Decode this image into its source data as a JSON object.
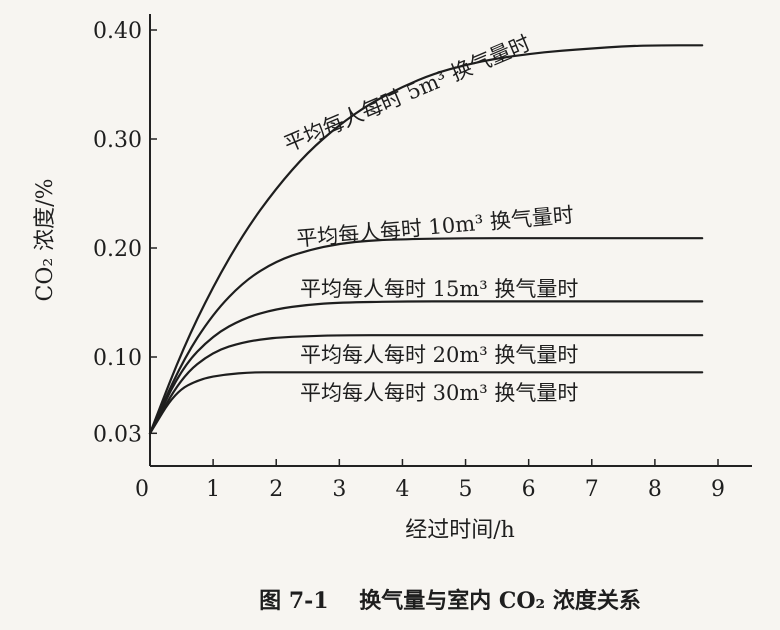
{
  "chart_data": {
    "type": "line",
    "xlabel": "经过时间/h",
    "ylabel": "CO₂ 浓度/%",
    "xlim": [
      0,
      9
    ],
    "ylim": [
      0,
      0.4
    ],
    "x_ticks": [
      "0",
      "1",
      "2",
      "3",
      "4",
      "5",
      "6",
      "7",
      "8",
      "9"
    ],
    "y_ticks": [
      {
        "value": 0.4,
        "label": "0.40"
      },
      {
        "value": 0.3,
        "label": "0.30"
      },
      {
        "value": 0.2,
        "label": "0.20"
      },
      {
        "value": 0.1,
        "label": "0.10"
      },
      {
        "value": 0.03,
        "label": "0.03"
      }
    ],
    "grid": false,
    "series": [
      {
        "name": "平均每人每时 5m³ 换气量时",
        "x": [
          0,
          0.5,
          1,
          1.5,
          2,
          2.5,
          3,
          3.5,
          4,
          4.5,
          5,
          5.5,
          6,
          6.5,
          7,
          7.5,
          8,
          8.75
        ],
        "y": [
          0.03,
          0.105,
          0.165,
          0.215,
          0.255,
          0.288,
          0.313,
          0.333,
          0.348,
          0.36,
          0.368,
          0.374,
          0.378,
          0.381,
          0.383,
          0.385,
          0.386,
          0.386
        ]
      },
      {
        "name": "平均每人每时 10m³ 换气量时",
        "x": [
          0,
          0.5,
          1,
          1.5,
          2,
          2.5,
          3,
          3.5,
          4,
          5,
          6,
          7,
          8,
          8.75
        ],
        "y": [
          0.03,
          0.095,
          0.14,
          0.17,
          0.188,
          0.198,
          0.204,
          0.207,
          0.208,
          0.209,
          0.209,
          0.209,
          0.209,
          0.209
        ]
      },
      {
        "name": "平均每人每时 15m³ 换气量时",
        "x": [
          0,
          0.5,
          1,
          1.5,
          2,
          2.5,
          3,
          4,
          5,
          6,
          7,
          8,
          8.75
        ],
        "y": [
          0.03,
          0.09,
          0.12,
          0.136,
          0.144,
          0.148,
          0.15,
          0.151,
          0.151,
          0.151,
          0.151,
          0.151,
          0.151
        ]
      },
      {
        "name": "平均每人每时 20m³ 换气量时",
        "x": [
          0,
          0.5,
          1,
          1.5,
          2,
          2.5,
          3,
          4,
          5,
          6,
          7,
          8,
          8.75
        ],
        "y": [
          0.03,
          0.082,
          0.105,
          0.114,
          0.118,
          0.119,
          0.12,
          0.12,
          0.12,
          0.12,
          0.12,
          0.12,
          0.12
        ]
      },
      {
        "name": "平均每人每时 30m³ 换气量时",
        "x": [
          0,
          0.4,
          0.8,
          1.2,
          1.6,
          2,
          3,
          4,
          5,
          6,
          7,
          8,
          8.75
        ],
        "y": [
          0.03,
          0.068,
          0.08,
          0.084,
          0.086,
          0.086,
          0.086,
          0.086,
          0.086,
          0.086,
          0.086,
          0.086,
          0.086
        ]
      }
    ],
    "caption": "图 7-1    换气量与室内 CO₂ 浓度关系"
  }
}
